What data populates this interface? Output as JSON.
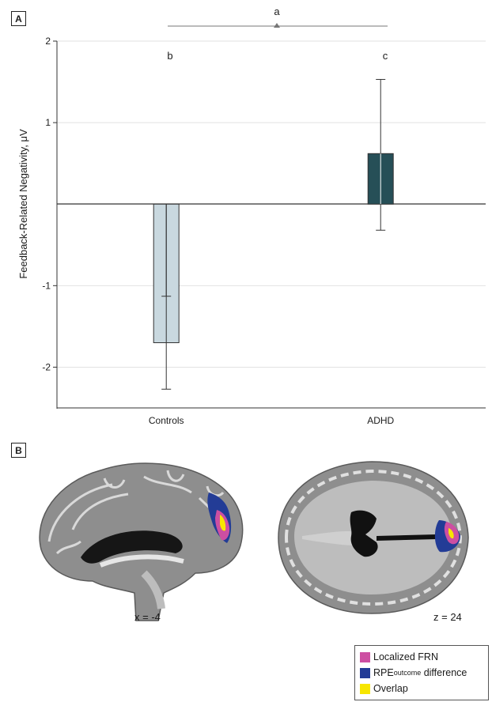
{
  "panels": {
    "a": "A",
    "b": "B"
  },
  "chart_data": {
    "type": "bar",
    "categories": [
      "Controls",
      "ADHD"
    ],
    "values": [
      -1.7,
      0.62
    ],
    "error_upper": [
      -1.13,
      1.53
    ],
    "error_lower": [
      -2.27,
      -0.32
    ],
    "ylabel": "Feedback-Related Negativity, μV",
    "ylim": [
      -2.5,
      2
    ],
    "yticks": [
      2,
      1,
      -1,
      -2
    ],
    "grid": true,
    "bar_colors": [
      "#c9d8df",
      "#264f57"
    ],
    "significance": {
      "a": "a",
      "b": "b",
      "c": "c"
    }
  },
  "brain_images": {
    "sagittal": {
      "label": "x = -4",
      "icon": "sagittal-brain-slice"
    },
    "axial": {
      "label": "z = 24",
      "icon": "axial-brain-slice"
    }
  },
  "legend": {
    "items": [
      {
        "label": "Localized FRN",
        "sub": "",
        "suffix": "",
        "color": "#cd4fa2"
      },
      {
        "label": "RPE",
        "sub": "outcome",
        "suffix": " difference",
        "color": "#233c96"
      },
      {
        "label": "Overlap",
        "sub": "",
        "suffix": "",
        "color": "#f7e600"
      }
    ]
  }
}
